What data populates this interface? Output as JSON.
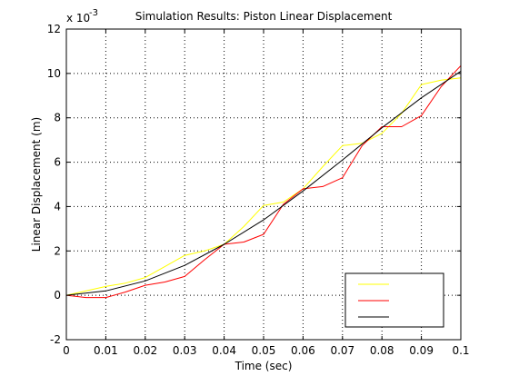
{
  "chart_data": {
    "type": "line",
    "title": "Simulation Results: Piston Linear Displacement",
    "xlabel": "Time (sec)",
    "ylabel": "Linear Displacement (m)",
    "y_multiplier": "x 10",
    "y_exponent": "-3",
    "xlim": [
      0,
      0.1
    ],
    "ylim": [
      -2,
      12
    ],
    "x_ticks": [
      0,
      0.01,
      0.02,
      0.03,
      0.04,
      0.05,
      0.06,
      0.07,
      0.08,
      0.09,
      0.1
    ],
    "x_tick_labels": [
      "0",
      "0.01",
      "0.02",
      "0.03",
      "0.04",
      "0.05",
      "0.06",
      "0.07",
      "0.08",
      "0.09",
      "0.1"
    ],
    "y_ticks": [
      -2,
      0,
      2,
      4,
      6,
      8,
      10,
      12
    ],
    "y_tick_labels": [
      "-2",
      "0",
      "2",
      "4",
      "6",
      "8",
      "10",
      "12"
    ],
    "grid": true,
    "legend": "bottom-right",
    "series": [
      {
        "color": "#ffff00",
        "x": [
          0,
          0.005,
          0.01,
          0.015,
          0.02,
          0.025,
          0.03,
          0.035,
          0.04,
          0.045,
          0.05,
          0.055,
          0.06,
          0.065,
          0.07,
          0.075,
          0.08,
          0.085,
          0.09,
          0.095,
          0.1
        ],
        "y": [
          0,
          0.2,
          0.4,
          0.55,
          0.8,
          1.3,
          1.8,
          2.0,
          2.3,
          3.1,
          4.05,
          4.2,
          4.8,
          5.8,
          6.75,
          6.85,
          7.3,
          8.2,
          9.5,
          9.7,
          9.8
        ]
      },
      {
        "color": "#ff0000",
        "x": [
          0,
          0.005,
          0.01,
          0.015,
          0.02,
          0.025,
          0.03,
          0.035,
          0.04,
          0.045,
          0.05,
          0.055,
          0.06,
          0.065,
          0.07,
          0.075,
          0.08,
          0.085,
          0.09,
          0.095,
          0.1
        ],
        "y": [
          0,
          -0.1,
          -0.1,
          0.15,
          0.45,
          0.6,
          0.85,
          1.6,
          2.3,
          2.4,
          2.75,
          4.1,
          4.8,
          4.9,
          5.3,
          6.75,
          7.6,
          7.6,
          8.1,
          9.4,
          10.35
        ]
      },
      {
        "color": "#000000",
        "x": [
          0,
          0.01,
          0.02,
          0.03,
          0.04,
          0.05,
          0.06,
          0.07,
          0.08,
          0.09,
          0.1
        ],
        "y": [
          0,
          0.2,
          0.65,
          1.35,
          2.3,
          3.4,
          4.7,
          6.1,
          7.55,
          8.9,
          10.1
        ]
      }
    ]
  }
}
